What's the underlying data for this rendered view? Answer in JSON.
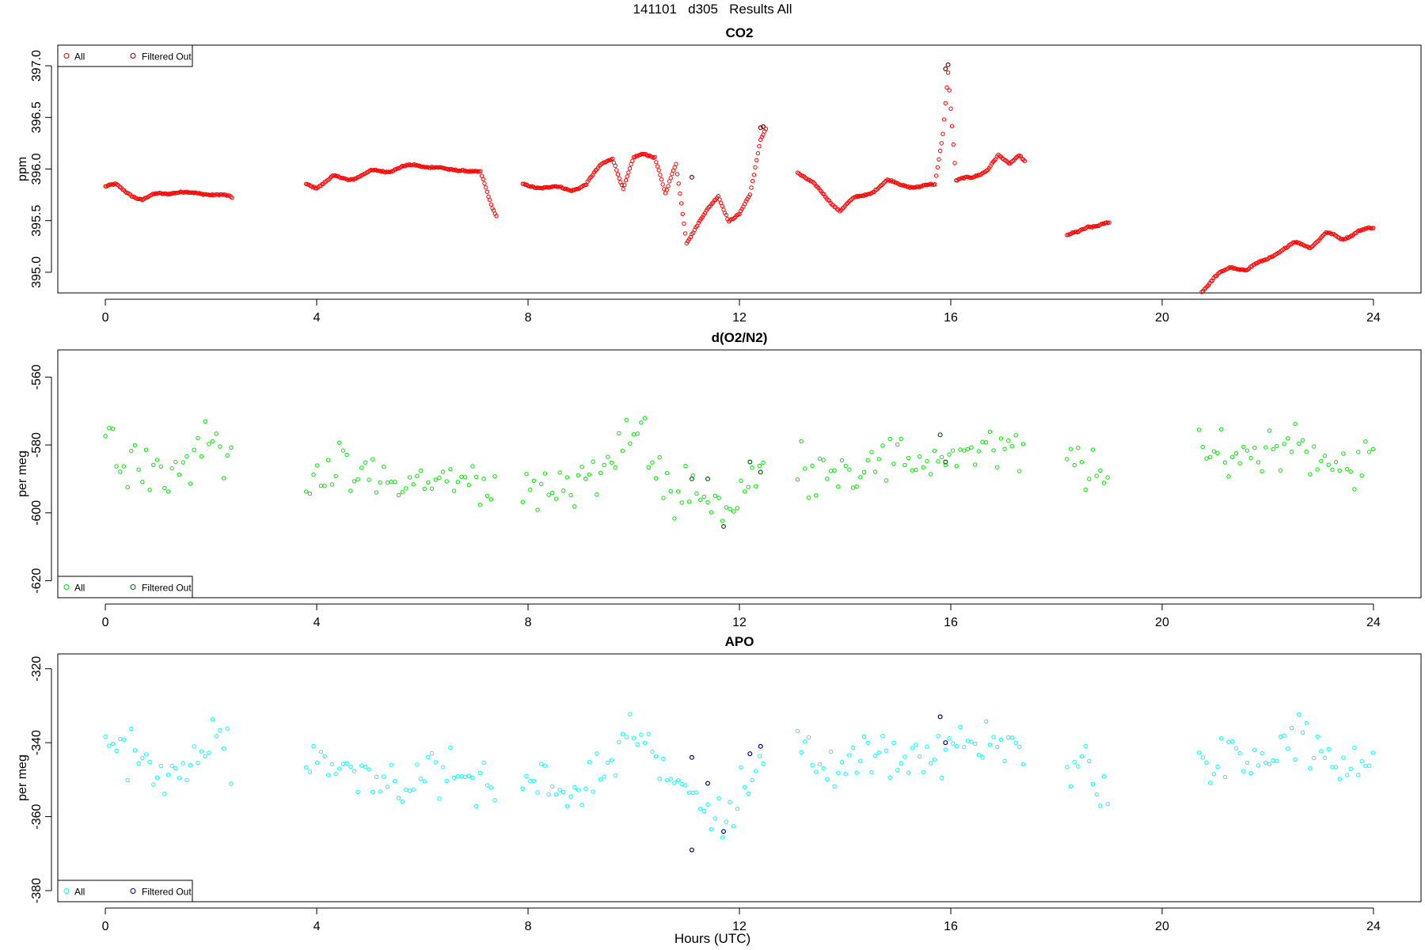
{
  "page": {
    "title": "141101   d305   Results All",
    "xlabel": "Hours (UTC)"
  },
  "colors": {
    "co2": "#ff0000",
    "o2n2": "#00e600",
    "apo": "#00ffff",
    "co2_filtered": "#8b0000",
    "o2n2_filtered": "#006400",
    "apo_filtered": "#00008b"
  },
  "chart_data": [
    {
      "type": "scatter",
      "title": "CO2",
      "ylabel": "ppm",
      "xlim": [
        -0.9,
        24.9
      ],
      "ylim": [
        394.8,
        397.2
      ],
      "xticks": [
        0,
        4,
        8,
        12,
        16,
        20,
        24
      ],
      "yticks": [
        395.0,
        395.5,
        396.0,
        396.5,
        397.0
      ],
      "ytick_labels": [
        "395.0",
        "395.5",
        "396.0",
        "396.5",
        "397.0"
      ],
      "legend": {
        "position": "top-left",
        "entries": [
          "All",
          "Filtered Out"
        ]
      },
      "series": [
        {
          "name": "All",
          "color": "#ff0000",
          "segments": [
            {
              "x": [
                0.0,
                0.2,
                0.4,
                0.7,
                1.0,
                1.3,
                1.6,
                1.9,
                2.2,
                2.4
              ],
              "y": [
                395.83,
                395.84,
                395.78,
                395.7,
                395.76,
                395.78,
                395.76,
                395.77,
                395.74,
                395.72
              ]
            },
            {
              "x": [
                3.8,
                4.0,
                4.3,
                4.6,
                5.0,
                5.3,
                5.6,
                5.9,
                6.2,
                6.5,
                6.8,
                7.1,
                7.3,
                7.4
              ],
              "y": [
                395.85,
                395.83,
                395.92,
                395.9,
                395.97,
                395.98,
                396.02,
                396.03,
                396.03,
                395.98,
                396.0,
                395.96,
                395.65,
                395.55
              ]
            },
            {
              "x": [
                7.9,
                8.2,
                8.5,
                8.8,
                9.1,
                9.4,
                9.6,
                9.8,
                10.0,
                10.2,
                10.4,
                10.6,
                10.8,
                11.0,
                11.2,
                11.4,
                11.6,
                11.8,
                12.0,
                12.2,
                12.4,
                12.5
              ],
              "y": [
                395.84,
                395.83,
                395.82,
                395.8,
                395.85,
                396.05,
                396.12,
                395.8,
                396.1,
                396.16,
                396.12,
                395.75,
                396.05,
                395.3,
                395.45,
                395.6,
                395.75,
                395.5,
                395.55,
                395.75,
                396.3,
                396.4
              ]
            },
            {
              "x": [
                13.1,
                13.4,
                13.7,
                13.9,
                14.2,
                14.5,
                14.8,
                15.1,
                15.4,
                15.7,
                15.85,
                15.95,
                16.1,
                16.4,
                16.7,
                16.9,
                17.1,
                17.3,
                17.4
              ],
              "y": [
                395.98,
                395.85,
                395.7,
                395.6,
                395.72,
                395.78,
                395.88,
                395.85,
                395.82,
                395.85,
                396.35,
                396.95,
                395.88,
                395.92,
                396.0,
                396.12,
                396.05,
                396.15,
                396.08
              ]
            },
            {
              "x": [
                18.2,
                18.4,
                18.6,
                18.8,
                19.0
              ],
              "y": [
                395.35,
                395.38,
                395.45,
                395.46,
                395.47
              ]
            },
            {
              "x": [
                20.7,
                21.0,
                21.3,
                21.6,
                21.9,
                22.2,
                22.5,
                22.8,
                23.1,
                23.4,
                23.7,
                24.0
              ],
              "y": [
                394.8,
                394.95,
                395.05,
                395.03,
                395.1,
                395.2,
                395.28,
                395.25,
                395.38,
                395.32,
                395.4,
                395.42
              ]
            }
          ]
        },
        {
          "name": "Filtered Out",
          "color": "#8b0000",
          "x": [
            11.1,
            12.4,
            12.45,
            15.9,
            15.95
          ],
          "y": [
            395.92,
            396.4,
            396.41,
            396.97,
            397.01
          ]
        }
      ]
    },
    {
      "type": "scatter",
      "title": "d(O2/N2)",
      "ylabel": "per meg",
      "xlim": [
        -0.9,
        24.9
      ],
      "ylim": [
        -625,
        -552
      ],
      "xticks": [
        0,
        4,
        8,
        12,
        16,
        20,
        24
      ],
      "yticks": [
        -620,
        -600,
        -580,
        -560
      ],
      "ytick_labels": [
        "-620",
        "-600",
        "-580",
        "-560"
      ],
      "legend": {
        "position": "bottom-left",
        "entries": [
          "All",
          "Filtered Out"
        ]
      },
      "series": [
        {
          "name": "All",
          "color": "#00e600",
          "segments": [
            {
              "x": [
                0.0,
                0.4,
                0.8,
                1.2,
                1.6,
                2.0,
                2.4
              ],
              "y": [
                -578,
                -583,
                -585,
                -590,
                -584,
                -578,
                -586
              ]
            },
            {
              "x": [
                3.8,
                4.4,
                5.0,
                5.6,
                6.2,
                6.8,
                7.2,
                7.4
              ],
              "y": [
                -587,
                -588,
                -590,
                -592,
                -590,
                -591,
                -592,
                -596
              ]
            },
            {
              "x": [
                7.9,
                8.4,
                8.8,
                9.2,
                9.6,
                9.9,
                10.2,
                10.6,
                11.0,
                11.4,
                11.8,
                12.2,
                12.5
              ],
              "y": [
                -594,
                -590,
                -593,
                -590,
                -585,
                -576,
                -578,
                -593,
                -592,
                -595,
                -600,
                -592,
                -586
              ]
            },
            {
              "x": [
                13.1,
                13.6,
                14.0,
                14.5,
                15.0,
                15.5,
                16.0,
                16.5,
                17.0,
                17.4
              ],
              "y": [
                -586,
                -586,
                -587,
                -586,
                -585,
                -584,
                -583,
                -582,
                -582,
                -584
              ]
            },
            {
              "x": [
                18.2,
                18.6,
                19.0
              ],
              "y": [
                -583,
                -586,
                -592
              ]
            },
            {
              "x": [
                20.7,
                21.2,
                21.7,
                22.2,
                22.6,
                23.0,
                23.5,
                24.0
              ],
              "y": [
                -584,
                -582,
                -583,
                -580,
                -578,
                -584,
                -586,
                -584
              ]
            }
          ]
        },
        {
          "name": "Filtered Out",
          "color": "#006400",
          "x": [
            11.1,
            11.4,
            11.7,
            12.2,
            12.4,
            15.8,
            15.9
          ],
          "y": [
            -590,
            -590,
            -604,
            -585,
            -588,
            -577,
            -585
          ]
        }
      ]
    },
    {
      "type": "scatter",
      "title": "APO",
      "ylabel": "per meg",
      "xlim": [
        -0.9,
        24.9
      ],
      "ylim": [
        -383,
        -316
      ],
      "xticks": [
        0,
        4,
        8,
        12,
        16,
        20,
        24
      ],
      "yticks": [
        -380,
        -360,
        -340,
        -320
      ],
      "ytick_labels": [
        "-380",
        "-360",
        "-340",
        "-320"
      ],
      "legend": {
        "position": "bottom-left",
        "entries": [
          "All",
          "Filtered Out"
        ]
      },
      "series": [
        {
          "name": "All",
          "color": "#00ffff",
          "segments": [
            {
              "x": [
                0.0,
                0.4,
                0.8,
                1.2,
                1.6,
                2.0,
                2.4
              ],
              "y": [
                -340,
                -343,
                -345,
                -350,
                -344,
                -338,
                -347
              ]
            },
            {
              "x": [
                3.8,
                4.4,
                5.0,
                5.6,
                6.2,
                6.8,
                7.2,
                7.4
              ],
              "y": [
                -345,
                -346,
                -349,
                -350,
                -349,
                -350,
                -351,
                -355
              ]
            },
            {
              "x": [
                7.9,
                8.4,
                8.8,
                9.2,
                9.6,
                9.9,
                10.2,
                10.6,
                11.0,
                11.4,
                11.8,
                12.2,
                12.5
              ],
              "y": [
                -353,
                -350,
                -354,
                -350,
                -345,
                -335,
                -338,
                -352,
                -352,
                -355,
                -360,
                -350,
                -344
              ]
            },
            {
              "x": [
                13.1,
                13.6,
                14.0,
                14.5,
                15.0,
                15.5,
                16.0,
                16.5,
                17.0,
                17.4
              ],
              "y": [
                -344,
                -345,
                -346,
                -345,
                -344,
                -343,
                -342,
                -341,
                -341,
                -343
              ]
            },
            {
              "x": [
                18.2,
                18.6,
                19.0
              ],
              "y": [
                -344,
                -347,
                -352
              ]
            },
            {
              "x": [
                20.7,
                21.2,
                21.7,
                22.2,
                22.6,
                23.0,
                23.5,
                24.0
              ],
              "y": [
                -348,
                -345,
                -346,
                -342,
                -338,
                -345,
                -347,
                -346
              ]
            }
          ]
        },
        {
          "name": "Filtered Out",
          "color": "#00008b",
          "x": [
            11.1,
            11.1,
            11.4,
            11.7,
            12.2,
            12.4,
            15.8,
            15.9
          ],
          "y": [
            -344,
            -369,
            -351,
            -364,
            -343,
            -341,
            -333,
            -340
          ]
        }
      ]
    }
  ]
}
